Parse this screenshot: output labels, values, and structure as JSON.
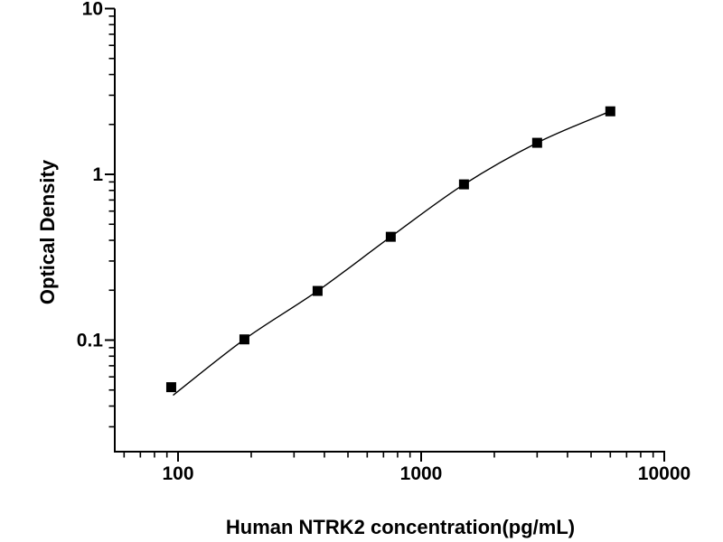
{
  "figure": {
    "background": "#ffffff",
    "axis_color": "#000000",
    "marker_color": "#000000",
    "line_color": "#000000"
  },
  "chart_data": {
    "type": "scatter",
    "subtype": "elisa-standard-curve-with-fit-line",
    "title": "",
    "xlabel": "Human NTRK2 concentration(pg/mL)",
    "ylabel": "Optical Density",
    "x_scale": "log",
    "y_scale": "log",
    "xlim": [
      55,
      10000
    ],
    "ylim": [
      0.021,
      10
    ],
    "grid": false,
    "legend": false,
    "x_major_ticks": [
      {
        "value": 100,
        "label": "100"
      },
      {
        "value": 1000,
        "label": "1000"
      },
      {
        "value": 10000,
        "label": "10000"
      }
    ],
    "y_major_ticks": [
      {
        "value": 0.1,
        "label": "0.1"
      },
      {
        "value": 1,
        "label": "1"
      },
      {
        "value": 10,
        "label": "10"
      }
    ],
    "series": [
      {
        "name": "Human NTRK2 standard curve",
        "marker": "filled-square",
        "color": "#000000",
        "x": [
          93.75,
          187.5,
          375,
          750,
          1500,
          3000,
          6000
        ],
        "y": [
          0.052,
          0.101,
          0.198,
          0.42,
          0.87,
          1.55,
          2.4
        ]
      }
    ]
  }
}
